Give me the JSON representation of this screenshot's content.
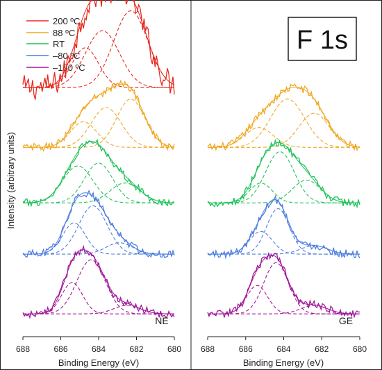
{
  "chart_data": {
    "type": "line",
    "ylabel": "Intensity (arbitrary units)",
    "xlabel": "Binding Energy (eV)",
    "element_label": "F 1s",
    "xlim": [
      688,
      680
    ],
    "xticks": [
      "688",
      "686",
      "684",
      "682",
      "680"
    ],
    "legend": {
      "placement": "top-left",
      "entries": [
        {
          "name": "200 ºC",
          "color": "#e8281e"
        },
        {
          "name": "88 ºC",
          "color": "#f0a823"
        },
        {
          "name": "RT",
          "color": "#21c25a"
        },
        {
          "name": "–80 ºC",
          "color": "#4f7fe0"
        },
        {
          "name": "–150 ºC",
          "color": "#a0189a"
        }
      ]
    },
    "panels": [
      {
        "label": "NE",
        "series": [
          {
            "temp": "200 ºC",
            "color": "#e8281e",
            "baseline": 0.875,
            "components": [
              {
                "center": 684.7,
                "amplitude": 0.14,
                "width": 0.7
              },
              {
                "center": 683.8,
                "amplitude": 0.2,
                "width": 0.9
              },
              {
                "center": 682.3,
                "amplitude": 0.27,
                "width": 0.9
              }
            ]
          },
          {
            "temp": "88 ºC",
            "color": "#f0a823",
            "baseline": 0.665,
            "components": [
              {
                "center": 684.8,
                "amplitude": 0.09,
                "width": 0.7
              },
              {
                "center": 683.6,
                "amplitude": 0.14,
                "width": 0.8
              },
              {
                "center": 682.3,
                "amplitude": 0.17,
                "width": 0.75
              }
            ]
          },
          {
            "temp": "RT",
            "color": "#21c25a",
            "baseline": 0.47,
            "components": [
              {
                "center": 685.1,
                "amplitude": 0.13,
                "width": 0.8
              },
              {
                "center": 684.0,
                "amplitude": 0.14,
                "width": 0.75
              },
              {
                "center": 682.6,
                "amplitude": 0.07,
                "width": 0.8
              }
            ]
          },
          {
            "temp": "–80 ºC",
            "color": "#4f7fe0",
            "baseline": 0.29,
            "components": [
              {
                "center": 685.3,
                "amplitude": 0.11,
                "width": 0.6
              },
              {
                "center": 684.3,
                "amplitude": 0.17,
                "width": 0.75
              },
              {
                "center": 682.9,
                "amplitude": 0.04,
                "width": 0.7
              }
            ]
          },
          {
            "temp": "–150 ºC",
            "color": "#a0189a",
            "baseline": 0.08,
            "components": [
              {
                "center": 685.4,
                "amplitude": 0.11,
                "width": 0.55
              },
              {
                "center": 684.4,
                "amplitude": 0.19,
                "width": 0.75
              },
              {
                "center": 682.5,
                "amplitude": 0.03,
                "width": 0.7
              }
            ]
          }
        ]
      },
      {
        "label": "GE",
        "series": [
          {
            "temp": "88 ºC",
            "color": "#f0a823",
            "baseline": 0.665,
            "components": [
              {
                "center": 685.3,
                "amplitude": 0.07,
                "width": 0.75
              },
              {
                "center": 683.8,
                "amplitude": 0.17,
                "width": 0.9
              },
              {
                "center": 682.4,
                "amplitude": 0.12,
                "width": 0.8
              }
            ]
          },
          {
            "temp": "RT",
            "color": "#21c25a",
            "baseline": 0.47,
            "components": [
              {
                "center": 685.2,
                "amplitude": 0.07,
                "width": 0.6
              },
              {
                "center": 684.2,
                "amplitude": 0.18,
                "width": 0.75
              },
              {
                "center": 682.8,
                "amplitude": 0.08,
                "width": 0.75
              }
            ]
          },
          {
            "temp": "–80 ºC",
            "color": "#4f7fe0",
            "baseline": 0.29,
            "components": [
              {
                "center": 685.2,
                "amplitude": 0.08,
                "width": 0.6
              },
              {
                "center": 684.3,
                "amplitude": 0.16,
                "width": 0.6
              },
              {
                "center": 682.4,
                "amplitude": 0.03,
                "width": 0.7
              }
            ]
          },
          {
            "temp": "–150 ºC",
            "color": "#a0189a",
            "baseline": 0.08,
            "components": [
              {
                "center": 685.4,
                "amplitude": 0.1,
                "width": 0.55
              },
              {
                "center": 684.4,
                "amplitude": 0.18,
                "width": 0.65
              },
              {
                "center": 682.4,
                "amplitude": 0.03,
                "width": 0.7
              }
            ]
          }
        ]
      }
    ]
  }
}
